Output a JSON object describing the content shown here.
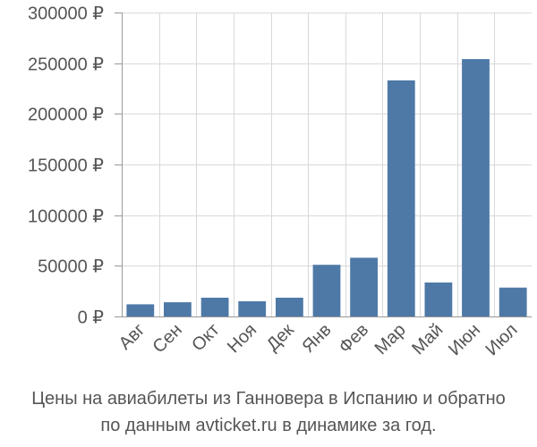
{
  "caption": {
    "line1": "Цены на авиабилеты из Ганновера в Испанию и обратно",
    "line2": "по данным avticket.ru в динамике за год."
  },
  "colors": {
    "bar": "#4e79a7",
    "grid": "#d9d9d9",
    "axis": "#999999",
    "text": "#555555"
  },
  "chart_data": {
    "type": "bar",
    "categories": [
      "Авг",
      "Сен",
      "Окт",
      "Ноя",
      "Дек",
      "Янв",
      "Фев",
      "Мар",
      "Май",
      "Июн",
      "Июл"
    ],
    "values": [
      12000,
      14000,
      18500,
      15000,
      18500,
      51000,
      58000,
      233000,
      33500,
      254000,
      28500
    ],
    "ylim": [
      0,
      300000
    ],
    "yticks": [
      0,
      50000,
      100000,
      150000,
      200000,
      250000,
      300000
    ],
    "ytick_labels": [
      "0 ₽",
      "50000 ₽",
      "100000 ₽",
      "150000 ₽",
      "200000 ₽",
      "250000 ₽",
      "300000 ₽"
    ],
    "grid": true
  }
}
